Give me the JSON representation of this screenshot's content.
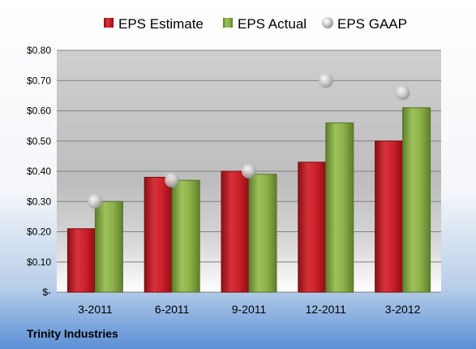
{
  "company": "Trinity Industries",
  "chart_data": {
    "type": "bar",
    "categories": [
      "3-2011",
      "6-2011",
      "9-2011",
      "12-2011",
      "3-2012"
    ],
    "series": [
      {
        "name": "EPS Estimate",
        "type": "bar",
        "color": "#c0202a",
        "values": [
          0.21,
          0.38,
          0.4,
          0.43,
          0.5
        ]
      },
      {
        "name": "EPS Actual",
        "type": "bar",
        "color": "#8cb04a",
        "values": [
          0.3,
          0.37,
          0.39,
          0.56,
          0.61
        ]
      },
      {
        "name": "EPS GAAP",
        "type": "scatter",
        "color": "#b8b8b8",
        "values": [
          0.3,
          0.37,
          0.4,
          0.7,
          0.66
        ]
      }
    ],
    "ylim": [
      0,
      0.8
    ],
    "yticks": [
      0,
      0.1,
      0.2,
      0.3,
      0.4,
      0.5,
      0.6,
      0.7,
      0.8
    ],
    "ytick_labels": [
      "$-",
      "$0.10",
      "$0.20",
      "$0.30",
      "$0.40",
      "$0.50",
      "$0.60",
      "$0.70",
      "$0.80"
    ],
    "legend_position": "top",
    "grid": true
  }
}
